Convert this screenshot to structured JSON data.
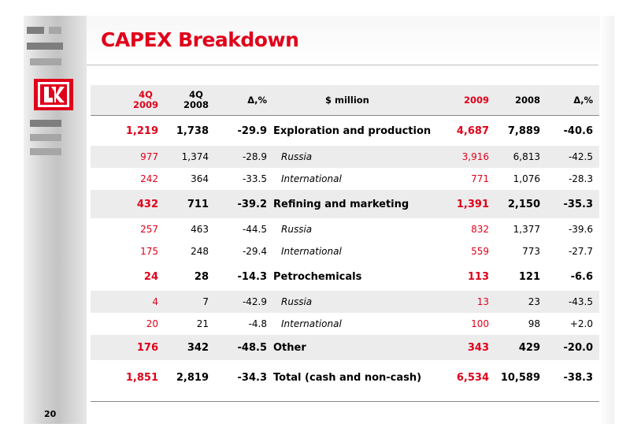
{
  "slide": {
    "title": "CAPEX Breakdown",
    "page_number": "20",
    "accent_color": "#e0001a",
    "logo_icon": "lukoil-logo-icon"
  },
  "table": {
    "headers": {
      "q4_2009_line1": "4Q",
      "q4_2009_line2": "2009",
      "q4_2008_line1": "4Q",
      "q4_2008_line2": "2008",
      "delta_q": "Δ,%",
      "label": "$ million",
      "y2009": "2009",
      "y2008": "2008",
      "delta_y": "Δ,%"
    },
    "rows": [
      {
        "q2009": "1,219",
        "q2008": "1,738",
        "dq": "-29.9",
        "label": "Exploration and production",
        "y2009": "4,687",
        "y2008": "7,889",
        "dy": "-40.6"
      },
      {
        "q2009": "977",
        "q2008": "1,374",
        "dq": "-28.9",
        "label": "Russia",
        "y2009": "3,916",
        "y2008": "6,813",
        "dy": "-42.5"
      },
      {
        "q2009": "242",
        "q2008": "364",
        "dq": "-33.5",
        "label": "International",
        "y2009": "771",
        "y2008": "1,076",
        "dy": "-28.3"
      },
      {
        "q2009": "432",
        "q2008": "711",
        "dq": "-39.2",
        "label": "Refining and marketing",
        "y2009": "1,391",
        "y2008": "2,150",
        "dy": "-35.3"
      },
      {
        "q2009": "257",
        "q2008": "463",
        "dq": "-44.5",
        "label": "Russia",
        "y2009": "832",
        "y2008": "1,377",
        "dy": "-39.6"
      },
      {
        "q2009": "175",
        "q2008": "248",
        "dq": "-29.4",
        "label": "International",
        "y2009": "559",
        "y2008": "773",
        "dy": "-27.7"
      },
      {
        "q2009": "24",
        "q2008": "28",
        "dq": "-14.3",
        "label": "Petrochemicals",
        "y2009": "113",
        "y2008": "121",
        "dy": "-6.6"
      },
      {
        "q2009": "4",
        "q2008": "7",
        "dq": "-42.9",
        "label": "Russia",
        "y2009": "13",
        "y2008": "23",
        "dy": "-43.5"
      },
      {
        "q2009": "20",
        "q2008": "21",
        "dq": "-4.8",
        "label": "International",
        "y2009": "100",
        "y2008": "98",
        "dy": "+2.0"
      },
      {
        "q2009": "176",
        "q2008": "342",
        "dq": "-48.5",
        "label": "Other",
        "y2009": "343",
        "y2008": "429",
        "dy": "-20.0"
      },
      {
        "q2009": "1,851",
        "q2008": "2,819",
        "dq": "-34.3",
        "label": "Total (cash and non-cash)",
        "y2009": "6,534",
        "y2008": "10,589",
        "dy": "-38.3"
      }
    ]
  }
}
